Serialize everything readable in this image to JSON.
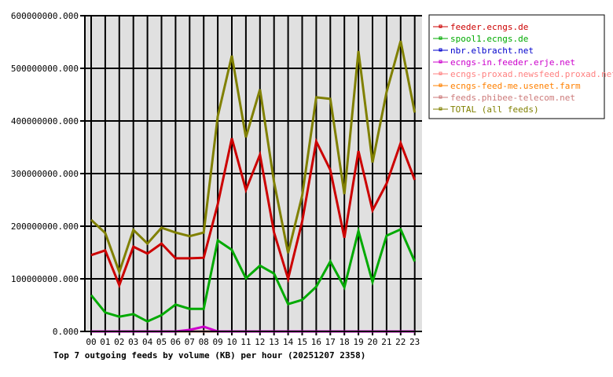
{
  "chart_data": {
    "type": "line",
    "title": "Top 7 outgoing feeds by volume (KB) per hour (20251207 2358)",
    "categories": [
      "00",
      "01",
      "02",
      "03",
      "04",
      "05",
      "06",
      "07",
      "08",
      "09",
      "10",
      "11",
      "12",
      "13",
      "14",
      "15",
      "16",
      "17",
      "18",
      "19",
      "20",
      "21",
      "22",
      "23"
    ],
    "ylim": [
      0,
      600000000
    ],
    "yticks": [
      "0.000",
      "100000000.000",
      "200000000.000",
      "300000000.000",
      "400000000.000",
      "500000000.000",
      "600000000.000"
    ],
    "grid": true,
    "legend_position": "right",
    "series": [
      {
        "name": "feeder.ecngs.de",
        "color": "#cc0000",
        "values": [
          145000000,
          154000000,
          88000000,
          161000000,
          148000000,
          167000000,
          139000000,
          139000000,
          140000000,
          242000000,
          367000000,
          269000000,
          336000000,
          188000000,
          100000000,
          209000000,
          361000000,
          307000000,
          178000000,
          343000000,
          230000000,
          281000000,
          358000000,
          288000000
        ]
      },
      {
        "name": "spool1.ecngs.de",
        "color": "#00aa00",
        "values": [
          69000000,
          36000000,
          28000000,
          33000000,
          19000000,
          31000000,
          51000000,
          43000000,
          43000000,
          173000000,
          155000000,
          101000000,
          125000000,
          110000000,
          52000000,
          60000000,
          85000000,
          133000000,
          84000000,
          191000000,
          94000000,
          182000000,
          194000000,
          133000000
        ]
      },
      {
        "name": "nbr.elbracht.net",
        "color": "#0000cc",
        "values": [
          0,
          0,
          0,
          0,
          0,
          0,
          0,
          0,
          0,
          0,
          0,
          0,
          0,
          0,
          0,
          0,
          0,
          0,
          0,
          0,
          0,
          0,
          0,
          0
        ]
      },
      {
        "name": "ecngs-in.feeder.erje.net",
        "color": "#cc00cc",
        "values": [
          0,
          0,
          0,
          0,
          0,
          0,
          0,
          3000000,
          9000000,
          0,
          0,
          0,
          0,
          0,
          0,
          0,
          0,
          0,
          0,
          0,
          0,
          0,
          0,
          0
        ]
      },
      {
        "name": "ecngs-proxad.newsfeed.proxad.net",
        "color": "#ff8080",
        "values": [
          0,
          0,
          0,
          0,
          0,
          0,
          0,
          0,
          0,
          0,
          0,
          0,
          0,
          0,
          0,
          0,
          0,
          0,
          0,
          0,
          0,
          0,
          0,
          0
        ]
      },
      {
        "name": "ecngs-feed-me.usenet.farm",
        "color": "#ff8000",
        "values": [
          0,
          0,
          0,
          0,
          0,
          0,
          0,
          0,
          0,
          0,
          0,
          0,
          0,
          0,
          0,
          0,
          0,
          0,
          0,
          0,
          0,
          0,
          0,
          0
        ]
      },
      {
        "name": "feeds.phibee-telecom.net",
        "color": "#cc7a7a",
        "values": [
          0,
          0,
          0,
          0,
          0,
          0,
          0,
          0,
          0,
          0,
          0,
          0,
          0,
          0,
          0,
          0,
          0,
          0,
          0,
          0,
          0,
          0,
          0,
          0
        ]
      },
      {
        "name": "TOTAL (all feeds)",
        "color": "#808000",
        "values": [
          212000000,
          187000000,
          113000000,
          193000000,
          167000000,
          197000000,
          188000000,
          181000000,
          188000000,
          409000000,
          524000000,
          369000000,
          460000000,
          284000000,
          149000000,
          258000000,
          445000000,
          442000000,
          261000000,
          533000000,
          321000000,
          455000000,
          552000000,
          416000000
        ]
      }
    ]
  }
}
